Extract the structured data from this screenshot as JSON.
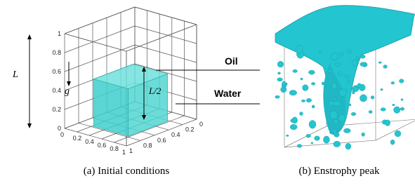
{
  "panel_a": {
    "axis_label": "L",
    "z_ticks": [
      "1",
      "0.8",
      "0.6",
      "0.4",
      "0.2",
      "0"
    ],
    "x_ticks": [
      "0",
      "0.2",
      "0.4",
      "0.6",
      "0.8",
      "1"
    ],
    "y_ticks": [
      "1",
      "0.8",
      "0.6",
      "0.4",
      "0.2",
      "0"
    ],
    "gravity": "g",
    "height_label": "L/2",
    "oil_label": "Oil",
    "water_label": "Water",
    "caption": "(a) Initial conditions"
  },
  "panel_b": {
    "caption": "(b) Enstrophy peak"
  }
}
